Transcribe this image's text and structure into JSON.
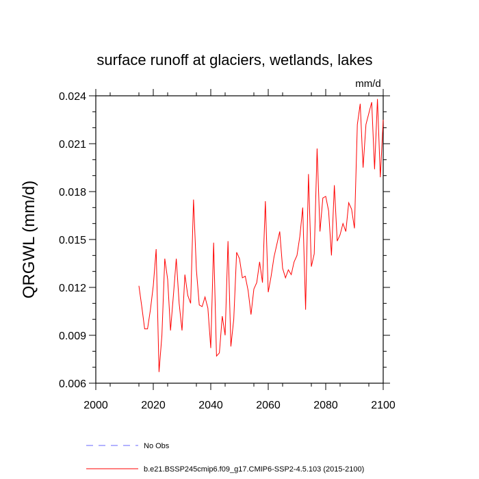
{
  "chart_data": {
    "type": "line",
    "title": "surface runoff at glaciers, wetlands, lakes",
    "units_label": "mm/d",
    "ylabel": "QRGWL  (mm/d)",
    "xlabel": "",
    "xlim": [
      2000,
      2100
    ],
    "ylim": [
      0.006,
      0.024
    ],
    "x_ticks": [
      2000,
      2020,
      2040,
      2060,
      2080,
      2100
    ],
    "x_tick_labels": [
      "2000",
      "2020",
      "2040",
      "2060",
      "2080",
      "2100"
    ],
    "y_ticks": [
      0.006,
      0.009,
      0.012,
      0.015,
      0.018,
      0.021,
      0.024
    ],
    "y_tick_labels": [
      "0.006",
      "0.009",
      "0.012",
      "0.015",
      "0.018",
      "0.021",
      "0.024"
    ],
    "series": [
      {
        "name": "b.e21.BSSP245cmip6.f09_g17.CMIP6-SSP2-4.5.103 (2015-2100)",
        "color": "#ff0000",
        "x": [
          2015,
          2016,
          2017,
          2018,
          2019,
          2020,
          2021,
          2022,
          2023,
          2024,
          2025,
          2026,
          2027,
          2028,
          2029,
          2030,
          2031,
          2032,
          2033,
          2034,
          2035,
          2036,
          2037,
          2038,
          2039,
          2040,
          2041,
          2042,
          2043,
          2044,
          2045,
          2046,
          2047,
          2048,
          2049,
          2050,
          2051,
          2052,
          2053,
          2054,
          2055,
          2056,
          2057,
          2058,
          2059,
          2060,
          2061,
          2062,
          2063,
          2064,
          2065,
          2066,
          2067,
          2068,
          2069,
          2070,
          2071,
          2072,
          2073,
          2074,
          2075,
          2076,
          2077,
          2078,
          2079,
          2080,
          2081,
          2082,
          2083,
          2084,
          2085,
          2086,
          2087,
          2088,
          2089,
          2090,
          2091,
          2092,
          2093,
          2094,
          2095,
          2096,
          2097,
          2098,
          2099,
          2100
        ],
        "values": [
          0.0121,
          0.0108,
          0.0094,
          0.0094,
          0.0106,
          0.0121,
          0.0144,
          0.0067,
          0.009,
          0.0138,
          0.0125,
          0.0093,
          0.0115,
          0.0138,
          0.011,
          0.0093,
          0.0128,
          0.0115,
          0.011,
          0.0175,
          0.0131,
          0.0109,
          0.0108,
          0.0114,
          0.0107,
          0.0082,
          0.0148,
          0.0077,
          0.0079,
          0.0102,
          0.009,
          0.0149,
          0.0083,
          0.01,
          0.0142,
          0.0138,
          0.0126,
          0.0127,
          0.0118,
          0.0103,
          0.0119,
          0.0123,
          0.0136,
          0.0123,
          0.0174,
          0.0117,
          0.0127,
          0.0139,
          0.0147,
          0.0155,
          0.0132,
          0.0126,
          0.0131,
          0.0128,
          0.0136,
          0.014,
          0.0152,
          0.017,
          0.0106,
          0.0191,
          0.0133,
          0.0141,
          0.0207,
          0.0155,
          0.0176,
          0.0177,
          0.0168,
          0.014,
          0.0184,
          0.0149,
          0.0153,
          0.016,
          0.0155,
          0.0173,
          0.0169,
          0.0157,
          0.0222,
          0.0235,
          0.0195,
          0.0222,
          0.0229,
          0.0236,
          0.0194,
          0.0238,
          0.0189,
          0.0225
        ]
      }
    ],
    "legend": {
      "placement": "bottom-left",
      "entries": [
        {
          "label": "No Obs",
          "color": "#6666ff",
          "style": "dashed"
        },
        {
          "label": "b.e21.BSSP245cmip6.f09_g17.CMIP6-SSP2-4.5.103 (2015-2100)",
          "color": "#ff0000",
          "style": "solid"
        }
      ]
    }
  }
}
